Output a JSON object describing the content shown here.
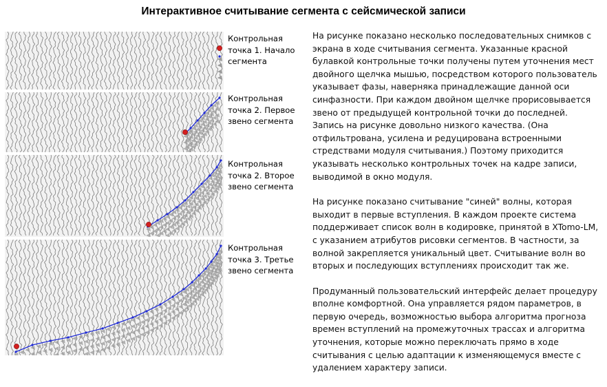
{
  "title": "Интерактивное считывание сегмента с сейсмической записи",
  "colors": {
    "panel_bg": "#f2f2f2",
    "trace": "#7a7a7a",
    "wiggle_fill": "#9a9a9a",
    "pick_line": "#1f2bd6",
    "pick_point": "#1f2bd6",
    "control_point": "#d42020"
  },
  "panels": [
    {
      "caption": "Контрольная точка 1. Начало сегмента",
      "caption_lines": [
        "Контрольная",
        "точка 1. Начало",
        "сегмента"
      ]
    },
    {
      "caption": "Контрольная точка 2. Первое звено сегмента",
      "caption_lines": [
        "Контрольная",
        "точка 2. Первое",
        "звено сегмента"
      ]
    },
    {
      "caption": "Контрольная точка 2. Второе звено сегмента",
      "caption_lines": [
        "Контрольная",
        "точка 2. Второе",
        "звено сегмента"
      ]
    },
    {
      "caption": "Контрольная точка 3. Третье звено сегмента",
      "caption_lines": [
        "Контрольная",
        "точка 3. Третье",
        "звено сегмента"
      ]
    }
  ],
  "description": [
    "На рисунке показано несколько последовательных снимков с экрана в ходе считывания сегмента. Указанные красной булавкой контрольные точки  получены путем уточнения мест двойного щелчка мышью, посредством которого пользователь указывает фазы, наверняка принадлежащие данной оси синфазности. При каждом двойном щелчке прорисовывается звено от предыдущей контрольной точки до последней. Запись на рисунке довольно низкого качества. (Она отфильтрована, усилена и редуцирована встроенными стредствами модуля считывания.) Поэтому приходится указывать несколько контрольных точек на кадре записи, выводимой в окно модуля.",
    "На рисунке показано считывание \"синей\" волны, которая выходит в первые вступления. В каждом проекте система поддерживает список волн в кодировке, принятой в XTomo-LM, с указанием атрибутов рисовки сегментов. В частности, за волной закрепляется уникальный цвет. Считывание волн во вторых и последующих вступлениях происходит так же.",
    "Продуманный пользовательский интерфейс делает процедуру вполне комфортной.  Она управляется рядом параметров, в первую очередь, возможностью выбора алгоритма прогноза времен вступлений на промежуточных трассах и алгоритма уточнения, которые можно переключать прямо в ходе считывания с целью адаптации к изменяющемуся вместе с удалением характеру записи."
  ]
}
